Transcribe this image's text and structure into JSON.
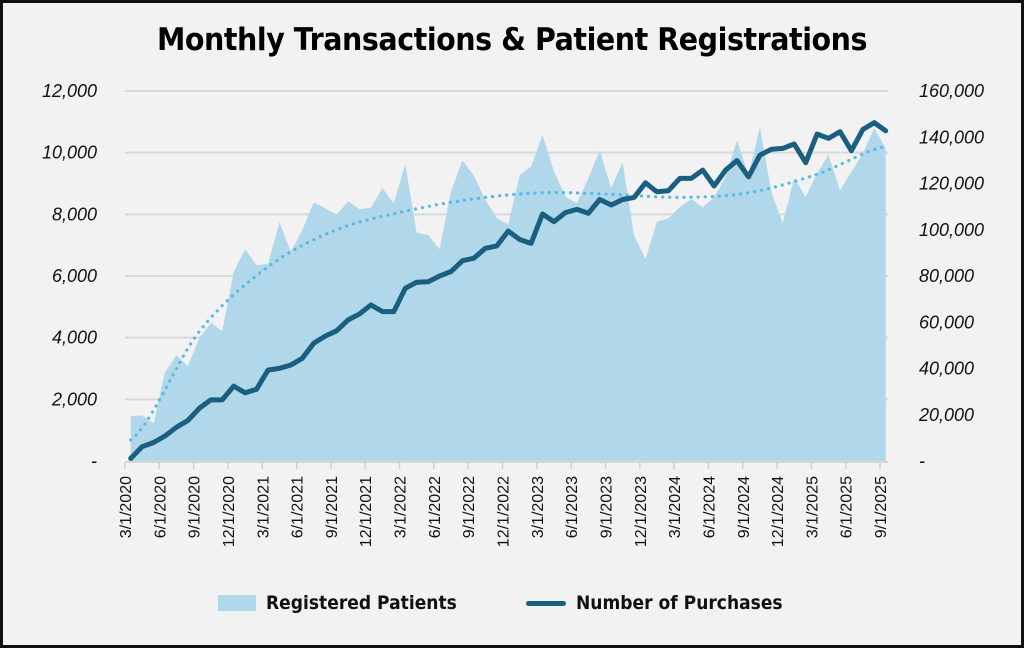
{
  "chart_data": {
    "type": "area+line",
    "title": "Monthly Transactions & Patient Registrations",
    "x_start": "3/1/2020",
    "x_end": "9/1/2025",
    "x_tick_labels": [
      "3/1/2020",
      "6/1/2020",
      "9/1/2020",
      "12/1/2020",
      "3/1/2021",
      "6/1/2021",
      "9/1/2021",
      "12/1/2021",
      "3/1/2022",
      "6/1/2022",
      "9/1/2022",
      "12/1/2022",
      "3/1/2023",
      "6/1/2023",
      "9/1/2023",
      "12/1/2023",
      "3/1/2024",
      "6/1/2024",
      "9/1/2024",
      "12/1/2024",
      "3/1/2025",
      "6/1/2025",
      "9/1/2025"
    ],
    "left_axis": {
      "ylim": [
        0,
        12000
      ],
      "tick_labels": [
        "-",
        "2,000",
        "4,000",
        "6,000",
        "8,000",
        "10,000",
        "12,000"
      ],
      "tick_values": [
        0,
        2000,
        4000,
        6000,
        8000,
        10000,
        12000
      ],
      "gridlines": true
    },
    "right_axis": {
      "ylim": [
        0,
        160000
      ],
      "tick_labels": [
        "-",
        "20,000",
        "40,000",
        "60,000",
        "80,000",
        "100,000",
        "120,000",
        "140,000",
        "160,000"
      ],
      "tick_values": [
        0,
        20000,
        40000,
        60000,
        80000,
        100000,
        120000,
        140000,
        160000
      ]
    },
    "series": [
      {
        "name": "Registered Patients",
        "type": "area",
        "axis": "left",
        "color": "#b0d8ea",
        "values": [
          1450,
          1480,
          1220,
          2880,
          3430,
          3080,
          3980,
          4480,
          4210,
          6140,
          6870,
          6350,
          6390,
          7750,
          6790,
          7490,
          8390,
          8200,
          7980,
          8420,
          8170,
          8220,
          8850,
          8360,
          9620,
          7400,
          7330,
          6870,
          8740,
          9750,
          9250,
          8470,
          7880,
          7660,
          9280,
          9550,
          10570,
          9400,
          8570,
          8360,
          9170,
          10070,
          8850,
          9690,
          7310,
          6550,
          7760,
          7870,
          8230,
          8500,
          8230,
          8560,
          9210,
          10400,
          9270,
          10840,
          8730,
          7720,
          9180,
          8560,
          9330,
          9930,
          8780,
          9380,
          9980,
          10790,
          10140
        ]
      },
      {
        "name": "Number of Purchases",
        "type": "line",
        "axis": "right",
        "color": "#1a5f80",
        "values": [
          1100,
          6200,
          8000,
          10800,
          14600,
          17500,
          22800,
          26400,
          26400,
          32400,
          29500,
          31000,
          39300,
          40100,
          41500,
          44400,
          50900,
          54000,
          56300,
          61000,
          63600,
          67500,
          64600,
          64600,
          74700,
          77300,
          77500,
          80000,
          81900,
          86600,
          87700,
          92000,
          93000,
          99400,
          95800,
          94100,
          106800,
          103500,
          107400,
          108800,
          107100,
          113100,
          110700,
          113100,
          114000,
          120300,
          116400,
          116900,
          122200,
          122200,
          125800,
          118900,
          125800,
          129900,
          122900,
          132300,
          134800,
          135200,
          137100,
          129000,
          141400,
          139500,
          142400,
          134200,
          143400,
          146300,
          142800
        ]
      },
      {
        "name": "Registered Patients trendline",
        "type": "line-dotted",
        "axis": "left",
        "color": "#5bb8e3",
        "sample_months": [
          0,
          6,
          12,
          18,
          24,
          30,
          36,
          42,
          48,
          54,
          60,
          66
        ],
        "values": [
          680,
          4200,
          6300,
          7500,
          8100,
          8500,
          8700,
          8650,
          8550,
          8700,
          9300,
          10200
        ]
      }
    ],
    "legend": {
      "position": "bottom",
      "entries": [
        "Registered Patients",
        "Number of Purchases"
      ]
    }
  }
}
